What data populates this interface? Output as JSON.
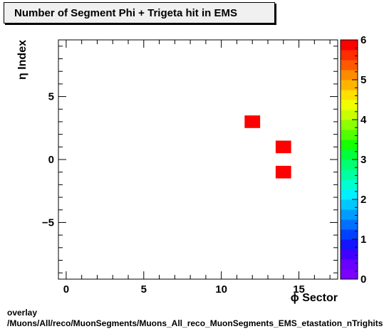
{
  "title": "Number of Segment Phi + Trigeta hit in EMS",
  "footer": {
    "line1": "overlay",
    "line2": "/Muons/All/reco/MuonSegments/Muons_All_reco_MuonSegments_EMS_etastation_nTrighits"
  },
  "chart_data": {
    "type": "heatmap",
    "xlabel": "ϕ Sector",
    "ylabel": "η Index",
    "xlim": [
      -0.5,
      17.5
    ],
    "ylim": [
      -9.5,
      9.5
    ],
    "x_ticks": [
      0,
      5,
      10,
      15
    ],
    "y_ticks": [
      -5,
      0,
      5
    ],
    "zlim": [
      0,
      6
    ],
    "z_ticks": [
      0,
      1,
      2,
      3,
      4,
      5,
      6
    ],
    "bin_width": 1,
    "cells": [
      {
        "x": 12,
        "y": 3,
        "z": 6
      },
      {
        "x": 14,
        "y": 1,
        "z": 6
      },
      {
        "x": 14,
        "y": -1,
        "z": 6
      }
    ],
    "palette": [
      "#7c00ff",
      "#6a00ff",
      "#4000ff",
      "#1414ff",
      "#0040ff",
      "#0070ff",
      "#009cff",
      "#00c8ff",
      "#00f0ff",
      "#00ffd0",
      "#00ffa0",
      "#00ff70",
      "#00ff3c",
      "#14ff00",
      "#50ff00",
      "#8cff00",
      "#c8ff00",
      "#f0ff00",
      "#ffe000",
      "#ffb400",
      "#ff8c00",
      "#ff5a00",
      "#ff2d00",
      "#ff0000"
    ]
  }
}
